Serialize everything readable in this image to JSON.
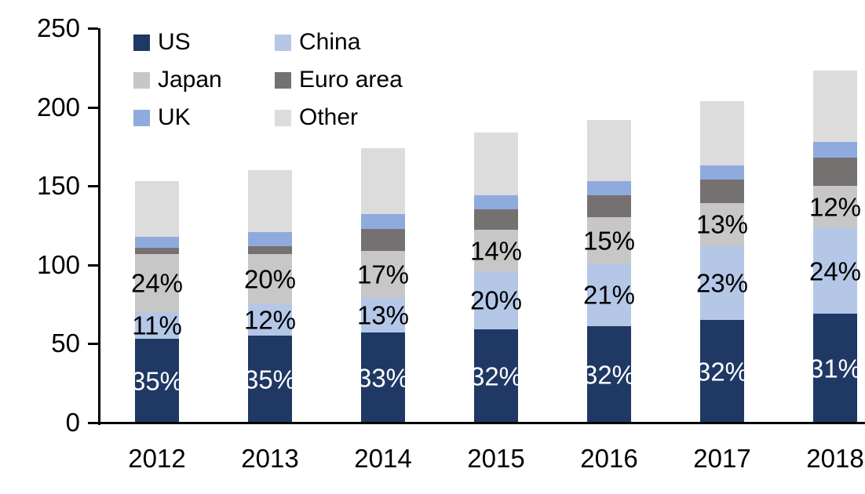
{
  "chart_data": {
    "type": "bar",
    "stacked": true,
    "title": "",
    "xlabel": "",
    "ylabel": "",
    "categories": [
      "2012",
      "2013",
      "2014",
      "2015",
      "2016",
      "2017",
      "2018"
    ],
    "series": [
      {
        "name": "US",
        "color": "#1F3864",
        "values": [
          53,
          55,
          57,
          59,
          61,
          65,
          69
        ],
        "segment_labels": [
          "35%",
          "35%",
          "33%",
          "32%",
          "32%",
          "32%",
          "31%"
        ],
        "label_color": "#FFFFFF"
      },
      {
        "name": "China",
        "color": "#B4C7E7",
        "values": [
          17,
          20,
          22,
          37,
          40,
          47,
          54
        ],
        "segment_labels": [
          "11%",
          "12%",
          "13%",
          "20%",
          "21%",
          "23%",
          "24%"
        ],
        "label_color": "#000000"
      },
      {
        "name": "Japan",
        "color": "#C7C7C7",
        "values": [
          37,
          32,
          30,
          26,
          29,
          27,
          27
        ],
        "segment_labels": [
          "24%",
          "20%",
          "17%",
          "14%",
          "15%",
          "13%",
          "12%"
        ],
        "label_color": "#000000"
      },
      {
        "name": "Euro area",
        "color": "#767171",
        "values": [
          4,
          5,
          14,
          13,
          14,
          15,
          18
        ],
        "segment_labels": null,
        "label_color": null
      },
      {
        "name": "UK",
        "color": "#8FAADC",
        "values": [
          7,
          9,
          9,
          9,
          9,
          9,
          10
        ],
        "segment_labels": null,
        "label_color": null
      },
      {
        "name": "Other",
        "color": "#DCDCDC",
        "values": [
          35,
          39,
          42,
          40,
          39,
          41,
          45
        ],
        "segment_labels": null,
        "label_color": null
      }
    ],
    "stack_totals": [
      153,
      160,
      174,
      184,
      192,
      204,
      223
    ],
    "ylim": [
      0,
      250
    ],
    "yticks": [
      0,
      50,
      100,
      150,
      200,
      250
    ],
    "grid": false,
    "legend_position": "top-left",
    "legend_columns": 2,
    "axis_color": "#000000"
  }
}
